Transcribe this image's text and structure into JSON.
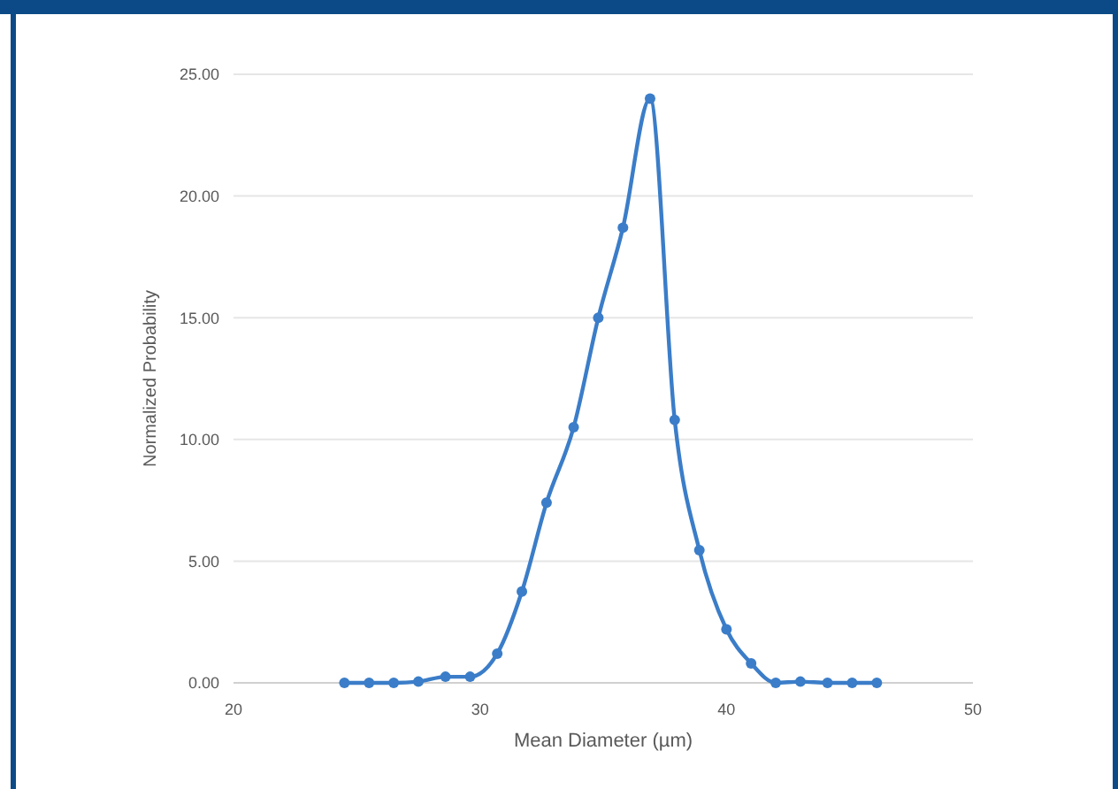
{
  "chart_data": {
    "type": "line",
    "xlabel": "Mean Diameter (µm)",
    "ylabel": "Normalized Probability",
    "x": [
      24.5,
      25.5,
      26.5,
      27.5,
      28.6,
      29.6,
      30.7,
      31.7,
      32.7,
      33.8,
      34.8,
      35.8,
      36.9,
      37.9,
      38.9,
      40.0,
      41.0,
      42.0,
      43.0,
      44.1,
      45.1,
      46.1
    ],
    "series": [
      {
        "color": "#3b7dc8",
        "values": [
          0,
          0,
          0,
          0.05,
          0.25,
          0.25,
          1.2,
          3.75,
          7.4,
          10.5,
          15.0,
          18.7,
          24.0,
          10.8,
          5.45,
          2.2,
          0.8,
          0,
          0.05,
          0,
          0,
          0
        ]
      }
    ],
    "xlim": [
      20,
      50
    ],
    "xticks": [
      20,
      30,
      40,
      50
    ],
    "ylim": [
      0,
      25
    ],
    "yticks": [
      {
        "value": 0,
        "label": "0.00"
      },
      {
        "value": 5,
        "label": "5.00"
      },
      {
        "value": 10,
        "label": "10.00"
      },
      {
        "value": 15,
        "label": "15.00"
      },
      {
        "value": 20,
        "label": "20.00"
      },
      {
        "value": 25,
        "label": "25.00"
      }
    ],
    "grid": "y",
    "marker": "circle",
    "line_style": "solid"
  }
}
